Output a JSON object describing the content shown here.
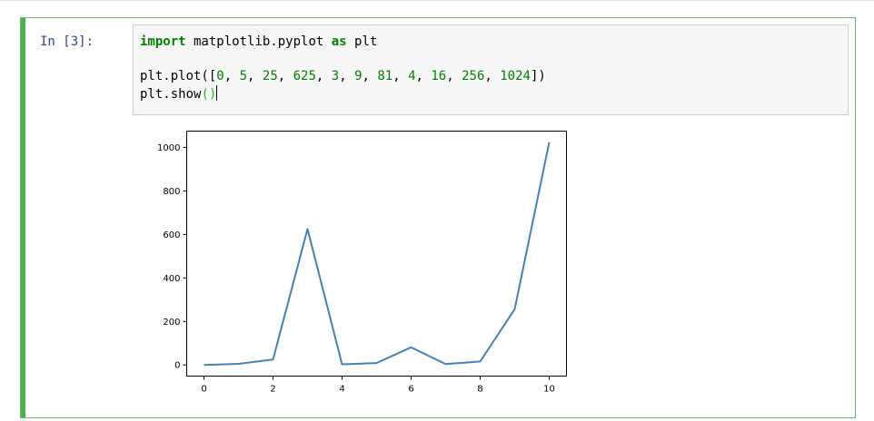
{
  "cell": {
    "prompt": "In [3]:",
    "code_lines": {
      "line1": {
        "kw_import": "import",
        "module": " matplotlib.pyplot ",
        "kw_as": "as",
        "alias": " plt"
      },
      "line3": {
        "prefix": "plt.plot([",
        "n0": "0",
        "n1": "5",
        "n2": "25",
        "n3": "625",
        "n4": "3",
        "n5": "9",
        "n6": "81",
        "n7": "4",
        "n8": "16",
        "n9": "256",
        "n10": "1024",
        "sep": ", ",
        "suffix": "])"
      },
      "line4": {
        "prefix": "plt.show",
        "parens": "()"
      }
    }
  },
  "colors": {
    "cell_border": "#66bb6a",
    "cell_bar": "#4caf50",
    "prompt": "#303f9f",
    "keyword": "#008000",
    "line": "#4682b4"
  },
  "chart_data": {
    "type": "line",
    "x": [
      0,
      1,
      2,
      3,
      4,
      5,
      6,
      7,
      8,
      9,
      10
    ],
    "series": [
      {
        "values": [
          0,
          5,
          25,
          625,
          3,
          9,
          81,
          4,
          16,
          256,
          1024
        ]
      }
    ],
    "xlim": [
      -0.5,
      10.5
    ],
    "ylim": [
      -51.2,
      1075.2
    ],
    "xticks": [
      0,
      2,
      4,
      6,
      8,
      10
    ],
    "yticks": [
      0,
      200,
      400,
      600,
      800,
      1000
    ],
    "xtick_labels": [
      "0",
      "2",
      "4",
      "6",
      "8",
      "10"
    ],
    "ytick_labels": [
      "0",
      "200",
      "400",
      "600",
      "800",
      "1000"
    ],
    "grid": false
  }
}
